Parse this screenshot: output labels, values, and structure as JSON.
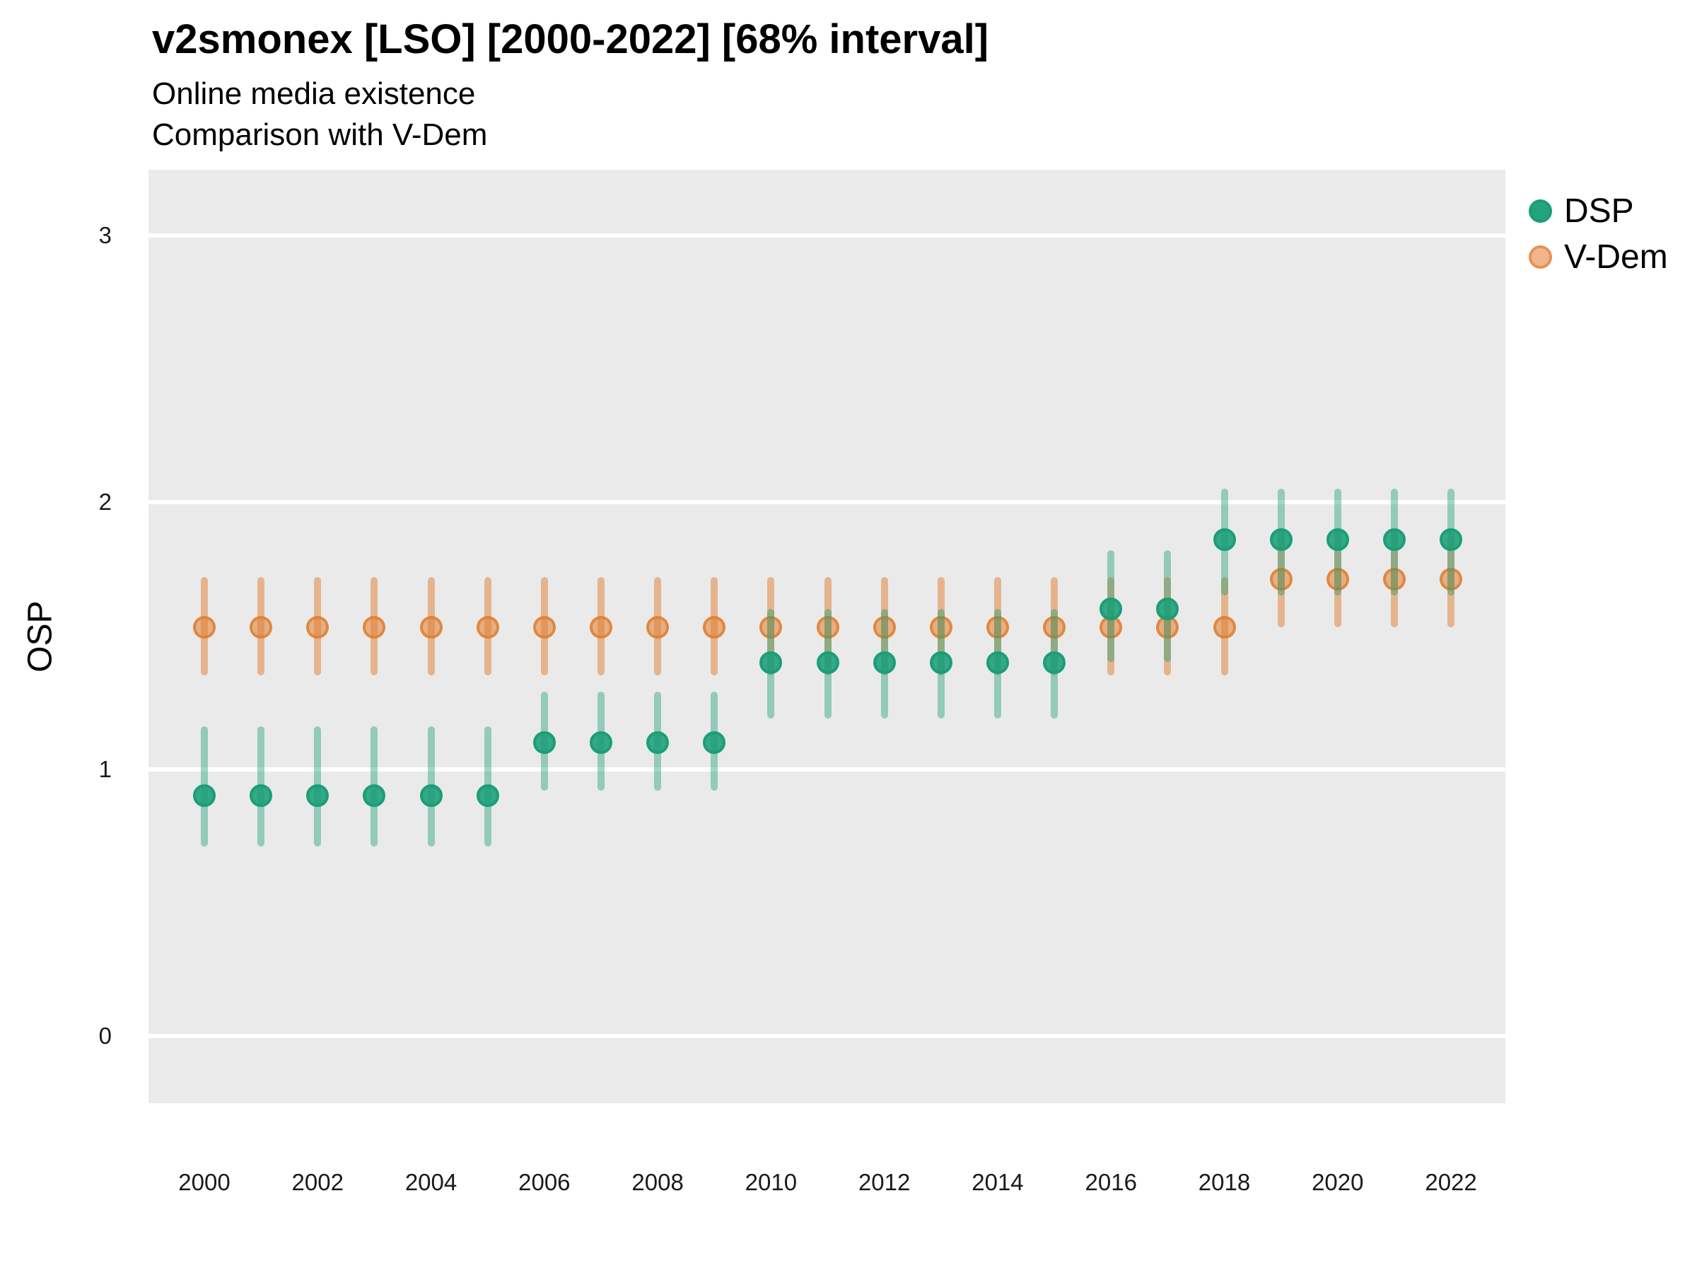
{
  "header": {
    "title": "v2smonex [LSO] [2000-2022] [68% interval]",
    "subtitle_line1": "Online media existence",
    "subtitle_line2": "Comparison with V-Dem"
  },
  "legend": {
    "position": "top-right",
    "items": [
      {
        "label": "DSP",
        "color": "#1B9E77",
        "dot_fill": "#22A37B",
        "dot_ring": "#1B9E77"
      },
      {
        "label": "V-Dem",
        "color": "#E07E30",
        "dot_fill": "#F1B58B",
        "dot_ring": "#E59254"
      }
    ]
  },
  "chart_data": {
    "type": "scatter",
    "mark": "pointrange",
    "interval_level": "68%",
    "title": "v2smonex [LSO] [2000-2022] [68% interval]",
    "xlabel": "",
    "ylabel": "OSP",
    "x": [
      2000,
      2001,
      2002,
      2003,
      2004,
      2005,
      2006,
      2007,
      2008,
      2009,
      2010,
      2011,
      2012,
      2013,
      2014,
      2015,
      2016,
      2017,
      2018,
      2019,
      2020,
      2021,
      2022
    ],
    "x_tick_labels": [
      "2000",
      "2002",
      "2004",
      "2006",
      "2008",
      "2010",
      "2012",
      "2014",
      "2016",
      "2018",
      "2020",
      "2022"
    ],
    "yticks": [
      0,
      1,
      2,
      3
    ],
    "ylim": [
      -0.25,
      3.25
    ],
    "xlim": [
      1999,
      2023
    ],
    "grid": "horizontal-white-on-gray",
    "panel_bg": "#EAEAEA",
    "series": [
      {
        "name": "DSP",
        "color": "#1B9E77",
        "values": [
          0.9,
          0.9,
          0.9,
          0.9,
          0.9,
          0.9,
          1.1,
          1.1,
          1.1,
          1.1,
          1.4,
          1.4,
          1.4,
          1.4,
          1.4,
          1.4,
          1.6,
          1.6,
          1.86,
          1.86,
          1.86,
          1.86,
          1.86
        ],
        "lower": [
          0.71,
          0.71,
          0.71,
          0.71,
          0.71,
          0.71,
          0.92,
          0.92,
          0.92,
          0.92,
          1.19,
          1.19,
          1.19,
          1.19,
          1.19,
          1.19,
          1.4,
          1.4,
          1.65,
          1.65,
          1.65,
          1.65,
          1.65
        ],
        "upper": [
          1.16,
          1.16,
          1.16,
          1.16,
          1.16,
          1.16,
          1.29,
          1.29,
          1.29,
          1.29,
          1.6,
          1.6,
          1.6,
          1.6,
          1.6,
          1.6,
          1.82,
          1.82,
          2.05,
          2.05,
          2.05,
          2.05,
          2.05
        ]
      },
      {
        "name": "V-Dem",
        "color": "#E07E30",
        "values": [
          1.53,
          1.53,
          1.53,
          1.53,
          1.53,
          1.53,
          1.53,
          1.53,
          1.53,
          1.53,
          1.53,
          1.53,
          1.53,
          1.53,
          1.53,
          1.53,
          1.53,
          1.53,
          1.53,
          1.71,
          1.71,
          1.71,
          1.71
        ],
        "lower": [
          1.35,
          1.35,
          1.35,
          1.35,
          1.35,
          1.35,
          1.35,
          1.35,
          1.35,
          1.35,
          1.35,
          1.35,
          1.35,
          1.35,
          1.35,
          1.35,
          1.35,
          1.35,
          1.35,
          1.53,
          1.53,
          1.53,
          1.53
        ],
        "upper": [
          1.72,
          1.72,
          1.72,
          1.72,
          1.72,
          1.72,
          1.72,
          1.72,
          1.72,
          1.72,
          1.72,
          1.72,
          1.72,
          1.72,
          1.72,
          1.72,
          1.72,
          1.72,
          1.72,
          1.9,
          1.9,
          1.9,
          1.9
        ]
      }
    ]
  }
}
